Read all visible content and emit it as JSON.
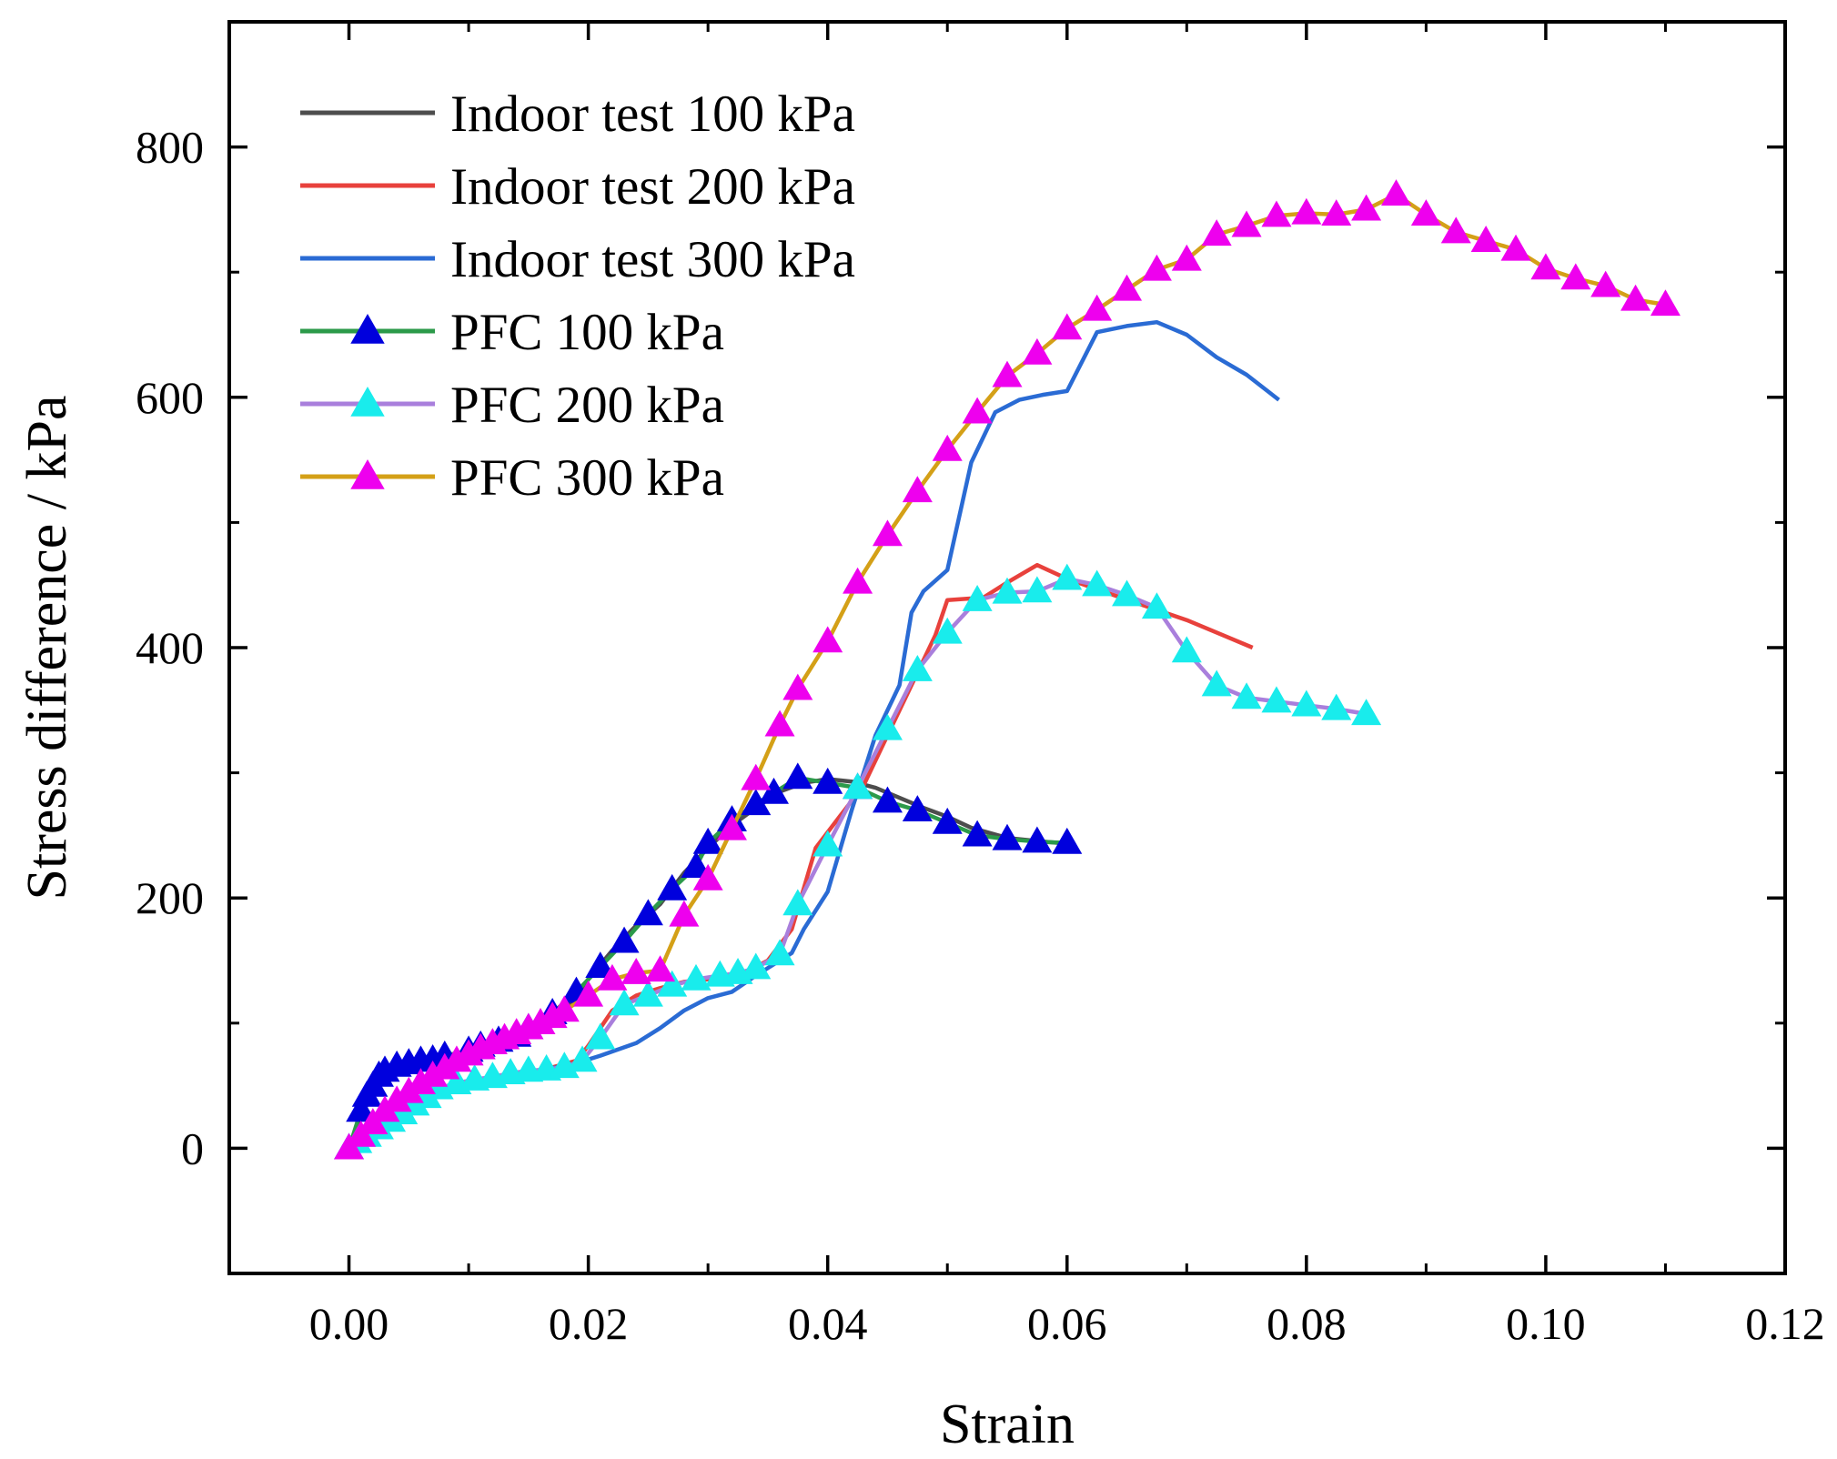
{
  "chart_data": {
    "type": "line",
    "title": "",
    "xlabel": "Strain",
    "ylabel": "Stress difference /  kPa",
    "xlim": [
      -0.01,
      0.12
    ],
    "ylim": [
      -100,
      900
    ],
    "x_ticks": [
      0.0,
      0.02,
      0.04,
      0.06,
      0.08,
      0.1,
      0.12
    ],
    "x_tick_labels": [
      "0.00",
      "0.02",
      "0.04",
      "0.06",
      "0.08",
      "0.10",
      "0.12"
    ],
    "y_ticks": [
      0,
      200,
      400,
      600,
      800
    ],
    "y_tick_labels": [
      "0",
      "200",
      "400",
      "600",
      "800"
    ],
    "grid": false,
    "legend_position": "top-left",
    "series": [
      {
        "name": "Indoor test 100 kPa",
        "color": "#4d4d4d",
        "marker": "none",
        "points": [
          [
            0,
            0
          ],
          [
            0.001,
            25
          ],
          [
            0.002,
            45
          ],
          [
            0.003,
            58
          ],
          [
            0.005,
            65
          ],
          [
            0.007,
            70
          ],
          [
            0.01,
            77
          ],
          [
            0.013,
            84
          ],
          [
            0.016,
            94
          ],
          [
            0.018,
            110
          ],
          [
            0.02,
            135
          ],
          [
            0.022,
            158
          ],
          [
            0.024,
            178
          ],
          [
            0.026,
            195
          ],
          [
            0.028,
            220
          ],
          [
            0.03,
            240
          ],
          [
            0.032,
            258
          ],
          [
            0.034,
            272
          ],
          [
            0.036,
            285
          ],
          [
            0.038,
            292
          ],
          [
            0.04,
            295
          ],
          [
            0.042,
            293
          ],
          [
            0.044,
            288
          ],
          [
            0.046,
            280
          ],
          [
            0.048,
            272
          ],
          [
            0.05,
            265
          ],
          [
            0.052,
            256
          ],
          [
            0.055,
            248
          ],
          [
            0.058,
            245
          ],
          [
            0.0605,
            243
          ]
        ]
      },
      {
        "name": "Indoor test 200 kPa",
        "color": "#e8413c",
        "marker": "none",
        "points": [
          [
            0,
            0
          ],
          [
            0.002,
            15
          ],
          [
            0.004,
            28
          ],
          [
            0.006,
            40
          ],
          [
            0.008,
            48
          ],
          [
            0.01,
            52
          ],
          [
            0.013,
            56
          ],
          [
            0.016,
            62
          ],
          [
            0.019,
            70
          ],
          [
            0.02,
            82
          ],
          [
            0.022,
            110
          ],
          [
            0.024,
            122
          ],
          [
            0.026,
            128
          ],
          [
            0.028,
            133
          ],
          [
            0.03,
            135
          ],
          [
            0.033,
            140
          ],
          [
            0.035,
            150
          ],
          [
            0.037,
            175
          ],
          [
            0.039,
            240
          ],
          [
            0.041,
            265
          ],
          [
            0.043,
            290
          ],
          [
            0.045,
            330
          ],
          [
            0.047,
            370
          ],
          [
            0.049,
            410
          ],
          [
            0.05,
            438
          ],
          [
            0.053,
            440
          ],
          [
            0.055,
            452
          ],
          [
            0.0575,
            466
          ],
          [
            0.06,
            455
          ],
          [
            0.063,
            445
          ],
          [
            0.066,
            435
          ],
          [
            0.07,
            422
          ],
          [
            0.073,
            410
          ],
          [
            0.0755,
            400
          ]
        ]
      },
      {
        "name": "Indoor test 300 kPa",
        "color": "#2a6bd4",
        "marker": "none",
        "points": [
          [
            0,
            0
          ],
          [
            0.002,
            12
          ],
          [
            0.004,
            24
          ],
          [
            0.006,
            36
          ],
          [
            0.008,
            46
          ],
          [
            0.01,
            52
          ],
          [
            0.013,
            57
          ],
          [
            0.016,
            62
          ],
          [
            0.019,
            68
          ],
          [
            0.021,
            74
          ],
          [
            0.024,
            84
          ],
          [
            0.026,
            96
          ],
          [
            0.028,
            110
          ],
          [
            0.03,
            120
          ],
          [
            0.032,
            125
          ],
          [
            0.034,
            138
          ],
          [
            0.036,
            150
          ],
          [
            0.037,
            156
          ],
          [
            0.038,
            175
          ],
          [
            0.04,
            205
          ],
          [
            0.042,
            270
          ],
          [
            0.044,
            330
          ],
          [
            0.046,
            370
          ],
          [
            0.047,
            428
          ],
          [
            0.048,
            445
          ],
          [
            0.05,
            462
          ],
          [
            0.052,
            548
          ],
          [
            0.054,
            588
          ],
          [
            0.056,
            598
          ],
          [
            0.058,
            602
          ],
          [
            0.06,
            605
          ],
          [
            0.0625,
            652
          ],
          [
            0.065,
            657
          ],
          [
            0.0675,
            660
          ],
          [
            0.07,
            650
          ],
          [
            0.0725,
            632
          ],
          [
            0.075,
            618
          ],
          [
            0.0777,
            598
          ]
        ]
      },
      {
        "name": "PFC 100 kPa",
        "color": "#2c9a4a",
        "marker": "triangle",
        "marker_color": "#0000dd",
        "points": [
          [
            0,
            0
          ],
          [
            0.001,
            30
          ],
          [
            0.0015,
            42
          ],
          [
            0.002,
            50
          ],
          [
            0.0025,
            58
          ],
          [
            0.003,
            62
          ],
          [
            0.004,
            66
          ],
          [
            0.005,
            68
          ],
          [
            0.006,
            70
          ],
          [
            0.007,
            71
          ],
          [
            0.008,
            74
          ],
          [
            0.01,
            78
          ],
          [
            0.011,
            82
          ],
          [
            0.0125,
            86
          ],
          [
            0.014,
            90
          ],
          [
            0.015,
            96
          ],
          [
            0.017,
            108
          ],
          [
            0.019,
            125
          ],
          [
            0.021,
            145
          ],
          [
            0.023,
            165
          ],
          [
            0.025,
            187
          ],
          [
            0.027,
            207
          ],
          [
            0.029,
            225
          ],
          [
            0.03,
            244
          ],
          [
            0.032,
            262
          ],
          [
            0.034,
            275
          ],
          [
            0.0355,
            284
          ],
          [
            0.0375,
            296
          ],
          [
            0.04,
            292
          ],
          [
            0.0425,
            288
          ],
          [
            0.045,
            277
          ],
          [
            0.0475,
            270
          ],
          [
            0.05,
            260
          ],
          [
            0.0525,
            250
          ],
          [
            0.055,
            247
          ],
          [
            0.0575,
            245
          ],
          [
            0.06,
            244
          ]
        ]
      },
      {
        "name": "PFC 200 kPa",
        "color": "#a97fdc",
        "marker": "triangle",
        "marker_color": "#19ecec",
        "points": [
          [
            0,
            0
          ],
          [
            0.0007,
            5
          ],
          [
            0.0015,
            10
          ],
          [
            0.0025,
            16
          ],
          [
            0.0035,
            22
          ],
          [
            0.0045,
            28
          ],
          [
            0.0055,
            35
          ],
          [
            0.0065,
            41
          ],
          [
            0.0075,
            48
          ],
          [
            0.009,
            52
          ],
          [
            0.0105,
            55
          ],
          [
            0.012,
            57
          ],
          [
            0.0135,
            60
          ],
          [
            0.015,
            62
          ],
          [
            0.0165,
            63
          ],
          [
            0.018,
            65
          ],
          [
            0.0195,
            70
          ],
          [
            0.021,
            88
          ],
          [
            0.023,
            115
          ],
          [
            0.025,
            122
          ],
          [
            0.027,
            130
          ],
          [
            0.029,
            135
          ],
          [
            0.031,
            138
          ],
          [
            0.0325,
            140
          ],
          [
            0.034,
            144
          ],
          [
            0.036,
            155
          ],
          [
            0.0375,
            195
          ],
          [
            0.04,
            242
          ],
          [
            0.0425,
            288
          ],
          [
            0.045,
            335
          ],
          [
            0.0475,
            382
          ],
          [
            0.05,
            412
          ],
          [
            0.0525,
            438
          ],
          [
            0.055,
            444
          ],
          [
            0.0575,
            445
          ],
          [
            0.06,
            455
          ],
          [
            0.0625,
            450
          ],
          [
            0.065,
            442
          ],
          [
            0.0675,
            432
          ],
          [
            0.07,
            397
          ],
          [
            0.0725,
            370
          ],
          [
            0.075,
            360
          ],
          [
            0.0775,
            357
          ],
          [
            0.08,
            354
          ],
          [
            0.0825,
            351
          ],
          [
            0.085,
            347
          ]
        ]
      },
      {
        "name": "PFC 300 kPa",
        "color": "#d4a017",
        "marker": "triangle",
        "marker_color": "#ee00ee",
        "points": [
          [
            0,
            0
          ],
          [
            0.001,
            10
          ],
          [
            0.002,
            20
          ],
          [
            0.003,
            30
          ],
          [
            0.004,
            38
          ],
          [
            0.005,
            45
          ],
          [
            0.006,
            52
          ],
          [
            0.007,
            58
          ],
          [
            0.008,
            64
          ],
          [
            0.009,
            70
          ],
          [
            0.01,
            75
          ],
          [
            0.011,
            80
          ],
          [
            0.012,
            84
          ],
          [
            0.013,
            88
          ],
          [
            0.014,
            92
          ],
          [
            0.015,
            96
          ],
          [
            0.016,
            100
          ],
          [
            0.017,
            105
          ],
          [
            0.018,
            110
          ],
          [
            0.02,
            122
          ],
          [
            0.022,
            135
          ],
          [
            0.024,
            140
          ],
          [
            0.026,
            142
          ],
          [
            0.028,
            186
          ],
          [
            0.03,
            215
          ],
          [
            0.032,
            255
          ],
          [
            0.034,
            295
          ],
          [
            0.036,
            338
          ],
          [
            0.0375,
            367
          ],
          [
            0.04,
            405
          ],
          [
            0.0425,
            452
          ],
          [
            0.045,
            490
          ],
          [
            0.0475,
            525
          ],
          [
            0.05,
            558
          ],
          [
            0.0525,
            588
          ],
          [
            0.055,
            617
          ],
          [
            0.0575,
            635
          ],
          [
            0.06,
            655
          ],
          [
            0.0625,
            670
          ],
          [
            0.065,
            686
          ],
          [
            0.0675,
            702
          ],
          [
            0.07,
            710
          ],
          [
            0.0725,
            730
          ],
          [
            0.075,
            737
          ],
          [
            0.0775,
            745
          ],
          [
            0.08,
            747
          ],
          [
            0.0825,
            746
          ],
          [
            0.085,
            750
          ],
          [
            0.0875,
            762
          ],
          [
            0.09,
            746
          ],
          [
            0.0925,
            732
          ],
          [
            0.095,
            725
          ],
          [
            0.0975,
            718
          ],
          [
            0.1,
            703
          ],
          [
            0.1025,
            695
          ],
          [
            0.105,
            689
          ],
          [
            0.1075,
            678
          ],
          [
            0.11,
            674
          ]
        ]
      }
    ]
  }
}
